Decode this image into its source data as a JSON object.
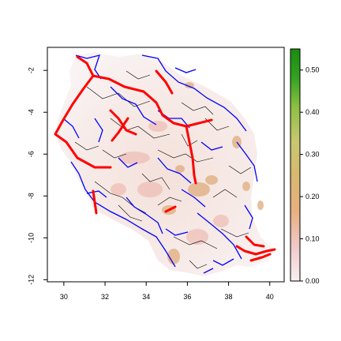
{
  "map": {
    "x_ticks": [
      "30",
      "32",
      "34",
      "36",
      "38",
      "40"
    ],
    "y_ticks": [
      "-2",
      "-4",
      "-6",
      "-8",
      "-10",
      "-12"
    ],
    "x_values": [
      30,
      32,
      34,
      36,
      38,
      40
    ],
    "y_values": [
      -2,
      -4,
      -6,
      -8,
      -10,
      -12
    ],
    "xlim": [
      29.2,
      40.7
    ],
    "ylim": [
      -12.1,
      -0.9
    ],
    "line_colors": {
      "major_roads": "#ff0000",
      "rivers": "#0000ff",
      "minor_roads": "#000000"
    }
  },
  "legend": {
    "scale_min": 0.0,
    "scale_max": 0.55,
    "labels": [
      "0.50",
      "0.40",
      "0.30",
      "0.20",
      "0.10",
      "0.00"
    ],
    "values": [
      0.5,
      0.4,
      0.3,
      0.2,
      0.1,
      0.0
    ],
    "colors": [
      "#f2f2f2",
      "#f2c4c4",
      "#e6a27a",
      "#d9b36a",
      "#c8c86a",
      "#7dbf3c",
      "#2c9a1a",
      "#1a8a10"
    ]
  }
}
